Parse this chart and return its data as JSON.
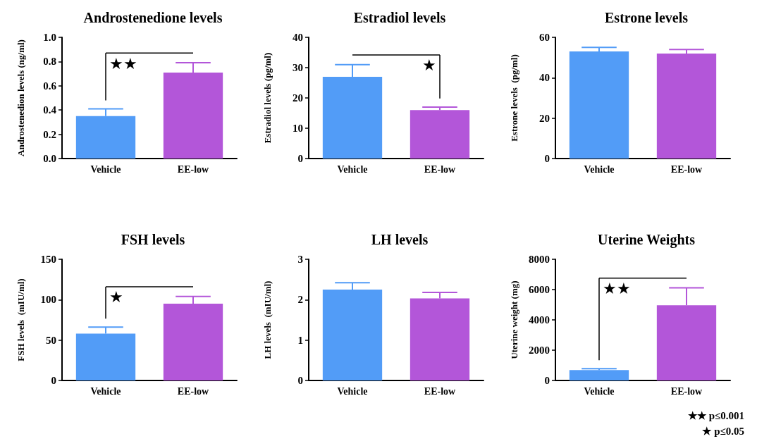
{
  "chart_data": [
    {
      "type": "bar",
      "title": "Androstenedione levels",
      "ylabel": "Androstenedion levels (ng/ml)",
      "categories": [
        "Vehicle",
        "EE-low"
      ],
      "values": [
        0.35,
        0.71
      ],
      "colors": [
        "#529cf7",
        "#b356d9"
      ],
      "errors": [
        [
          0.35,
          0.41
        ],
        [
          0.71,
          0.79
        ]
      ],
      "ylim": [
        0,
        1
      ],
      "yticks": [
        {
          "value": 0,
          "label": "0.0"
        },
        0.2,
        0.4,
        0.6,
        0.8,
        {
          "value": 1,
          "label": "1.0"
        }
      ],
      "grid": false,
      "annotations": [
        "★★"
      ]
    },
    {
      "type": "bar",
      "title": "Estradiol levels",
      "ylabel": "Estradiol levels (pg/ml)",
      "categories": [
        "Vehicle",
        "EE-low"
      ],
      "values": [
        27,
        16
      ],
      "colors": [
        "#529cf7",
        "#b356d9"
      ],
      "errors": [
        [
          27,
          31
        ],
        [
          16,
          17
        ]
      ],
      "ylim": [
        0,
        40
      ],
      "yticks": [
        0,
        10,
        20,
        30,
        40
      ],
      "grid": false,
      "annotations": [
        "★"
      ]
    },
    {
      "type": "bar",
      "title": "Estrone levels",
      "ylabel": "Estrone levels  (pg/ml)",
      "categories": [
        "Vehicle",
        "EE-low"
      ],
      "values": [
        53,
        52
      ],
      "colors": [
        "#529cf7",
        "#b356d9"
      ],
      "errors": [
        [
          53,
          55
        ],
        [
          52,
          54
        ]
      ],
      "ylim": [
        0,
        60
      ],
      "yticks": [
        0,
        20,
        40,
        60
      ],
      "grid": false
    },
    {
      "type": "bar",
      "title": "FSH levels",
      "ylabel": "FSH levels  (mIU/ml)",
      "categories": [
        "Vehicle",
        "EE-low"
      ],
      "values": [
        58,
        95
      ],
      "colors": [
        "#529cf7",
        "#b356d9"
      ],
      "errors": [
        [
          58,
          66
        ],
        [
          95,
          104
        ]
      ],
      "ylim": [
        0,
        150
      ],
      "yticks": [
        0,
        50,
        100,
        150
      ],
      "grid": false,
      "annotations": [
        "★"
      ]
    },
    {
      "type": "bar",
      "title": "LH levels",
      "ylabel": "LH levels  (mIU/ml)",
      "categories": [
        "Vehicle",
        "EE-low"
      ],
      "values": [
        2.25,
        2.03
      ],
      "colors": [
        "#529cf7",
        "#b356d9"
      ],
      "errors": [
        [
          2.25,
          2.42
        ],
        [
          2.03,
          2.18
        ]
      ],
      "ylim": [
        0,
        3
      ],
      "yticks": [
        0,
        1,
        2,
        3
      ],
      "grid": false
    },
    {
      "type": "bar",
      "title": "Uterine Weights",
      "ylabel": "Uterine weight (mg)",
      "categories": [
        "Vehicle",
        "EE-low"
      ],
      "values": [
        690,
        4970
      ],
      "colors": [
        "#529cf7",
        "#b356d9"
      ],
      "errors": [
        [
          690,
          780
        ],
        [
          4970,
          6120
        ]
      ],
      "ylim": [
        0,
        8000
      ],
      "yticks": [
        0,
        2000,
        4000,
        6000,
        8000
      ],
      "grid": false,
      "annotations": [
        "★★"
      ]
    },
    {
      "type": "other",
      "annotations": [
        "★★ p≤0.001",
        "★ p≤0.05"
      ]
    }
  ]
}
